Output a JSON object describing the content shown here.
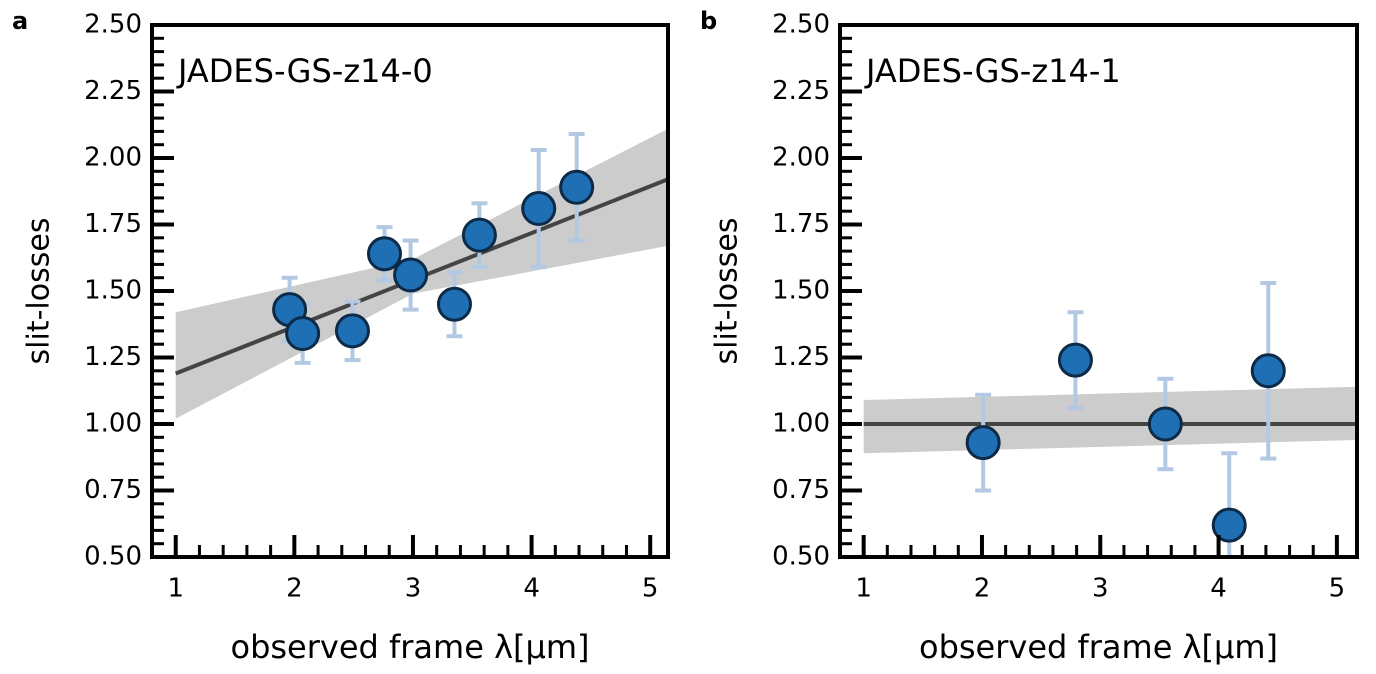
{
  "chart_data": [
    {
      "type": "scatter",
      "panel_label": "a",
      "title": "JADES-GS-z14-0",
      "xlabel": "observed frame λ[μm]",
      "ylabel": "slit-losses",
      "x": [
        1.96,
        2.07,
        2.49,
        2.76,
        2.98,
        3.35,
        3.56,
        4.06,
        4.38
      ],
      "values": [
        1.43,
        1.34,
        1.35,
        1.64,
        1.56,
        1.45,
        1.71,
        1.81,
        1.89
      ],
      "errors": [
        0.12,
        0.11,
        0.11,
        0.1,
        0.13,
        0.12,
        0.12,
        0.22,
        0.2
      ],
      "color": "#1f6fb4",
      "error_color": "#b3c9e3",
      "fit": {
        "x": [
          1,
          5.15
        ],
        "y": [
          1.19,
          1.92
        ],
        "color": "#444444"
      },
      "band": {
        "x": [
          1,
          3,
          5.15
        ],
        "upper": [
          1.42,
          1.62,
          2.11
        ],
        "lower": [
          1.02,
          1.49,
          1.67
        ],
        "color": "#cccccc"
      },
      "xlim": [
        0.8,
        5.15
      ],
      "ylim": [
        0.5,
        2.5
      ],
      "xticks": [
        1,
        2,
        3,
        4,
        5
      ],
      "yticks": [
        {
          "value": 0.5,
          "label": "0.50"
        },
        {
          "value": 0.75,
          "label": "0.75"
        },
        {
          "value": 1.0,
          "label": "1.00"
        },
        {
          "value": 1.25,
          "label": "1.25"
        },
        {
          "value": 1.5,
          "label": "1.50"
        },
        {
          "value": 1.75,
          "label": "1.75"
        },
        {
          "value": 2.0,
          "label": "2.00"
        },
        {
          "value": 2.25,
          "label": "2.25"
        },
        {
          "value": 2.5,
          "label": "2.50"
        }
      ],
      "xminorticks": [
        1.2,
        1.4,
        1.6,
        1.8,
        2.2,
        2.4,
        2.6,
        2.8,
        3.2,
        3.4,
        3.6,
        3.8,
        4.2,
        4.4,
        4.6,
        4.8
      ],
      "yminorticks": [
        0.55,
        0.6,
        0.65,
        0.7,
        0.8,
        0.85,
        0.9,
        0.95,
        1.05,
        1.1,
        1.15,
        1.2,
        1.3,
        1.35,
        1.4,
        1.45,
        1.55,
        1.6,
        1.65,
        1.7,
        1.8,
        1.85,
        1.9,
        1.95,
        2.05,
        2.1,
        2.15,
        2.2,
        2.3,
        2.35,
        2.4,
        2.45
      ]
    },
    {
      "type": "scatter",
      "panel_label": "b",
      "title": "JADES-GS-z14-1",
      "xlabel": "observed frame λ[μm]",
      "ylabel": "slit-losses",
      "x": [
        2.01,
        2.79,
        3.55,
        4.09,
        4.42
      ],
      "values": [
        0.93,
        1.24,
        1.0,
        0.62,
        1.2
      ],
      "errors": [
        0.18,
        0.18,
        0.17,
        0.27,
        0.33
      ],
      "color": "#1f6fb4",
      "error_color": "#b3c9e3",
      "fit": {
        "x": [
          1,
          5.17
        ],
        "y": [
          1.0,
          1.0
        ],
        "color": "#444444"
      },
      "band": {
        "x": [
          1,
          5.17
        ],
        "upper": [
          1.09,
          1.14
        ],
        "lower": [
          0.89,
          0.94
        ],
        "color": "#cccccc"
      },
      "xlim": [
        0.8,
        5.17
      ],
      "ylim": [
        0.5,
        2.5
      ],
      "xticks": [
        1,
        2,
        3,
        4,
        5
      ],
      "yticks": [
        {
          "value": 0.5,
          "label": "0.50"
        },
        {
          "value": 0.75,
          "label": "0.75"
        },
        {
          "value": 1.0,
          "label": "1.00"
        },
        {
          "value": 1.25,
          "label": "1.25"
        },
        {
          "value": 1.5,
          "label": "1.50"
        },
        {
          "value": 1.75,
          "label": "1.75"
        },
        {
          "value": 2.0,
          "label": "2.00"
        },
        {
          "value": 2.25,
          "label": "2.25"
        },
        {
          "value": 2.5,
          "label": "2.50"
        }
      ],
      "xminorticks": [
        1.2,
        1.4,
        1.6,
        1.8,
        2.2,
        2.4,
        2.6,
        2.8,
        3.2,
        3.4,
        3.6,
        3.8,
        4.2,
        4.4,
        4.6,
        4.8
      ],
      "yminorticks": [
        0.55,
        0.6,
        0.65,
        0.7,
        0.8,
        0.85,
        0.9,
        0.95,
        1.05,
        1.1,
        1.15,
        1.2,
        1.3,
        1.35,
        1.4,
        1.45,
        1.55,
        1.6,
        1.65,
        1.7,
        1.8,
        1.85,
        1.9,
        1.95,
        2.05,
        2.1,
        2.15,
        2.2,
        2.3,
        2.35,
        2.4,
        2.45
      ]
    }
  ]
}
